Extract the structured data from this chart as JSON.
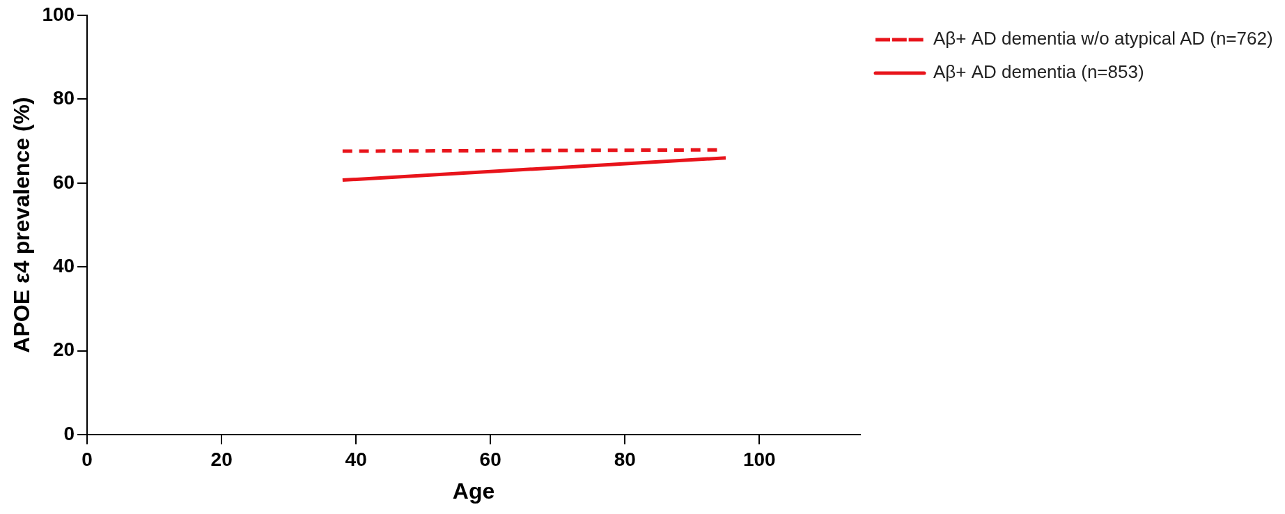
{
  "chart_data": {
    "type": "line",
    "xlabel": "Age",
    "ylabel": "APOE ε4 prevalence (%)",
    "series": [
      {
        "name": "Aβ+ AD dementia w/o atypical AD (n=762)",
        "color": "#e8141b",
        "line_style": "dashed",
        "x": [
          38,
          93.7
        ],
        "values": [
          67.6,
          67.9
        ]
      },
      {
        "name": "Aβ+ AD dementia (n=853)",
        "color": "#e8141b",
        "line_style": "solid",
        "x": [
          38,
          95
        ],
        "values": [
          60.7,
          66.0
        ]
      }
    ],
    "xlim": [
      0,
      115
    ],
    "xticks": [
      0,
      20,
      40,
      60,
      80,
      100
    ],
    "ylim": [
      0,
      100
    ],
    "yticks": [
      0,
      20,
      40,
      60,
      80,
      100
    ],
    "grid": false,
    "legend": "top right",
    "marker": "none"
  }
}
